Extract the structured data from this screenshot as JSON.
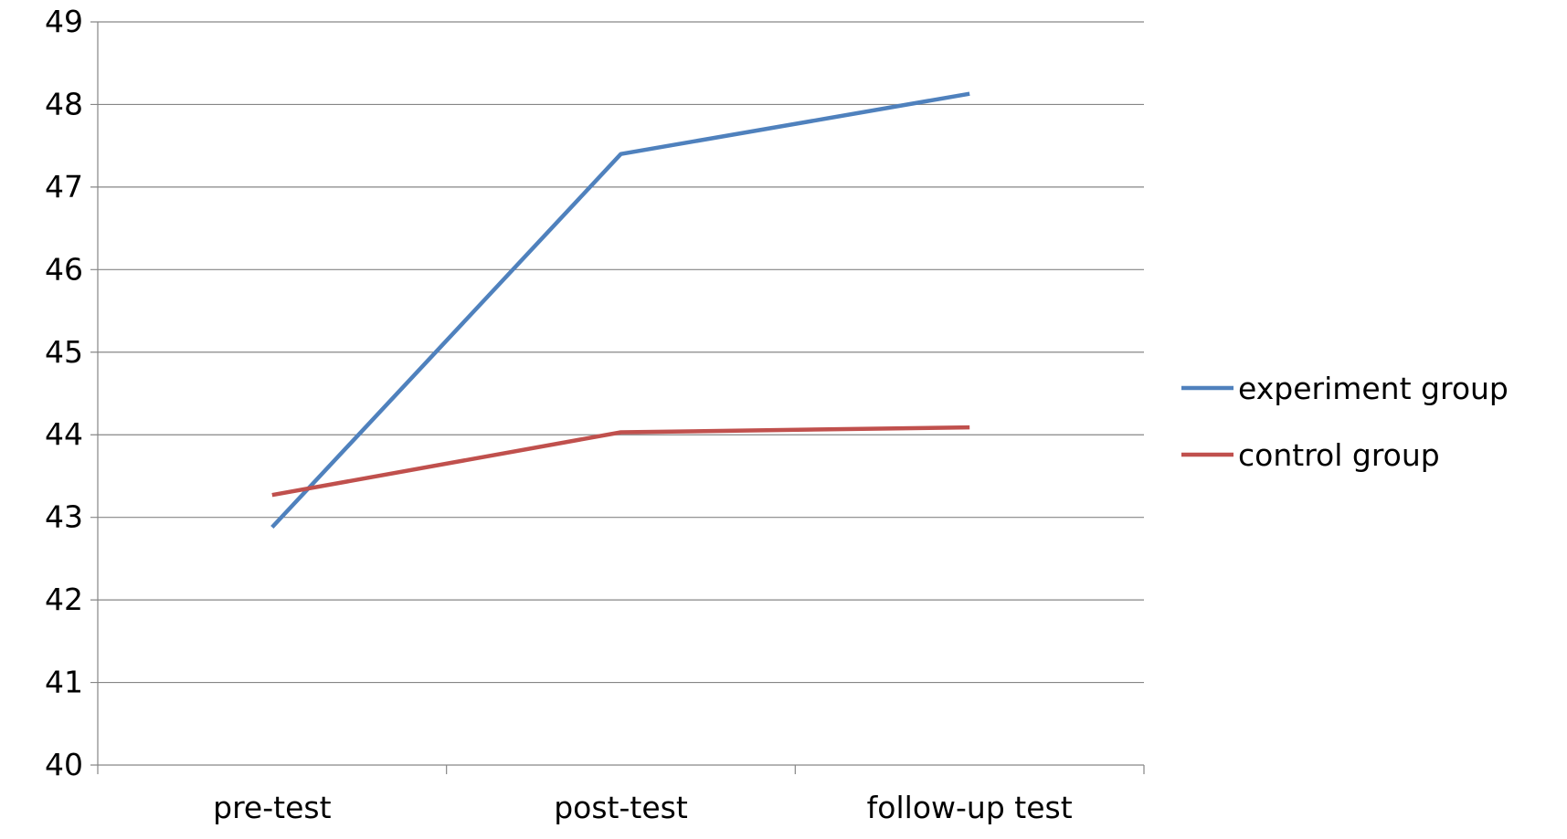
{
  "chart_data": {
    "type": "line",
    "categories": [
      "pre-test",
      "post-test",
      "follow-up test"
    ],
    "series": [
      {
        "name": "experiment group",
        "values": [
          42.88,
          47.4,
          48.13
        ],
        "color": "#4F81BD"
      },
      {
        "name": "control group",
        "values": [
          43.27,
          44.03,
          44.09
        ],
        "color": "#C0504D"
      }
    ],
    "ylim": [
      40,
      49
    ],
    "yticks": [
      "40",
      "41",
      "42",
      "43",
      "44",
      "45",
      "46",
      "47",
      "48",
      "49"
    ],
    "grid": true,
    "legend_position": "right",
    "title": "",
    "xlabel": "",
    "ylabel": ""
  }
}
